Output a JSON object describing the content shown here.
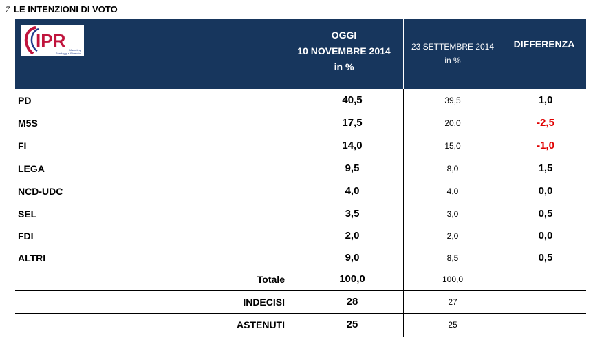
{
  "slide": {
    "number": "7",
    "title": "LE INTENZIONI DI VOTO"
  },
  "logo": {
    "text": "IPR",
    "tagline_1": "Marketing",
    "tagline_2": "Sondaggi e Ricerche"
  },
  "colors": {
    "header_bg": "#17365d",
    "header_text": "#ffffff",
    "negative": "#e00000",
    "logo_red": "#c0143c",
    "logo_blue": "#1f3b8c"
  },
  "header": {
    "oggi_line1": "OGGI",
    "oggi_line2": "10 NOVEMBRE  2014",
    "oggi_line3": "in %",
    "sett_line1": "23 SETTEMBRE 2014",
    "sett_line2": "in %",
    "diff": "DIFFERENZA"
  },
  "rows": [
    {
      "party": "PD",
      "oggi": "40,5",
      "sett": "39,5",
      "diff": "1,0",
      "negative": false
    },
    {
      "party": "M5S",
      "oggi": "17,5",
      "sett": "20,0",
      "diff": "-2,5",
      "negative": true
    },
    {
      "party": "FI",
      "oggi": "14,0",
      "sett": "15,0",
      "diff": "-1,0",
      "negative": true
    },
    {
      "party": "LEGA",
      "oggi": "9,5",
      "sett": "8,0",
      "diff": "1,5",
      "negative": false
    },
    {
      "party": "NCD-UDC",
      "oggi": "4,0",
      "sett": "4,0",
      "diff": "0,0",
      "negative": false
    },
    {
      "party": "SEL",
      "oggi": "3,5",
      "sett": "3,0",
      "diff": "0,5",
      "negative": false
    },
    {
      "party": "FDI",
      "oggi": "2,0",
      "sett": "2,0",
      "diff": "0,0",
      "negative": false
    },
    {
      "party": "ALTRI",
      "oggi": "9,0",
      "sett": "8,5",
      "diff": "0,5",
      "negative": false
    }
  ],
  "totals": [
    {
      "label": "Totale",
      "oggi": "100,0",
      "sett": "100,0"
    },
    {
      "label": "INDECISI",
      "oggi": "28",
      "sett": "27"
    },
    {
      "label": "ASTENUTI",
      "oggi": "25",
      "sett": "25"
    }
  ]
}
